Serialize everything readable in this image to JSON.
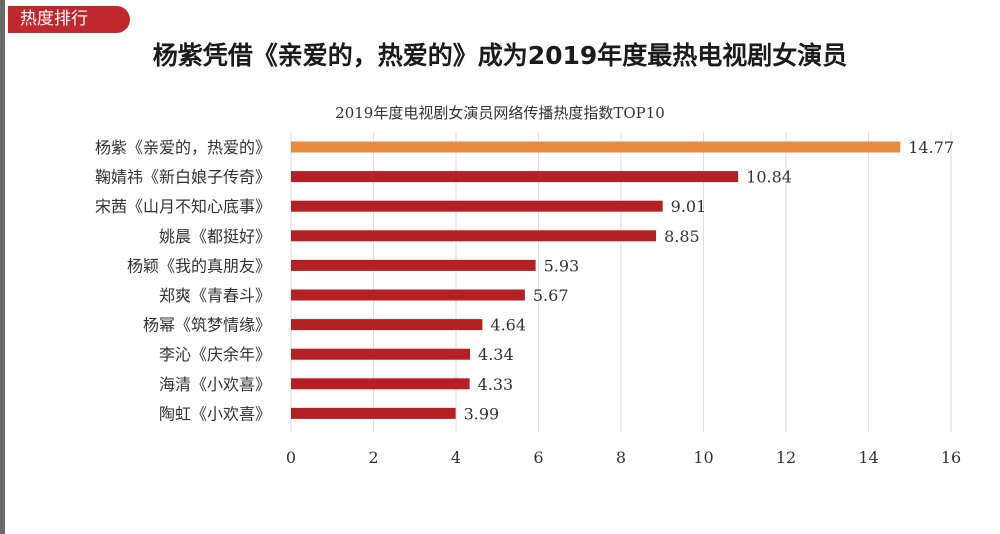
{
  "badge": "热度排行",
  "headline": "杨紫凭借《亲爱的，热爱的》成为2019年度最热电视剧女演员",
  "chart_data": {
    "type": "bar",
    "orientation": "horizontal",
    "title": "2019年度电视剧女演员网络传播热度指数TOP10",
    "categories": [
      "杨紫《亲爱的，热爱的》",
      "鞠婧祎《新白娘子传奇》",
      "宋茜《山月不知心底事》",
      "姚晨《都挺好》",
      "杨颖《我的真朋友》",
      "郑爽《青春斗》",
      "杨幂《筑梦情缘》",
      "李沁《庆余年》",
      "海清《小欢喜》",
      "陶虹《小欢喜》"
    ],
    "values": [
      14.77,
      10.84,
      9.01,
      8.85,
      5.93,
      5.67,
      4.64,
      4.34,
      4.33,
      3.99
    ],
    "value_labels": [
      "14.77",
      "10.84",
      "9.01",
      "8.85",
      "5.93",
      "5.67",
      "4.64",
      "4.34",
      "4.33",
      "3.99"
    ],
    "xlim": [
      0,
      16
    ],
    "xticks": [
      "0",
      "2",
      "4",
      "6",
      "8",
      "10",
      "12",
      "14",
      "16"
    ],
    "grid": "vertical",
    "colors": {
      "highlight": "#e98a3e",
      "bar": "#b52025"
    }
  }
}
